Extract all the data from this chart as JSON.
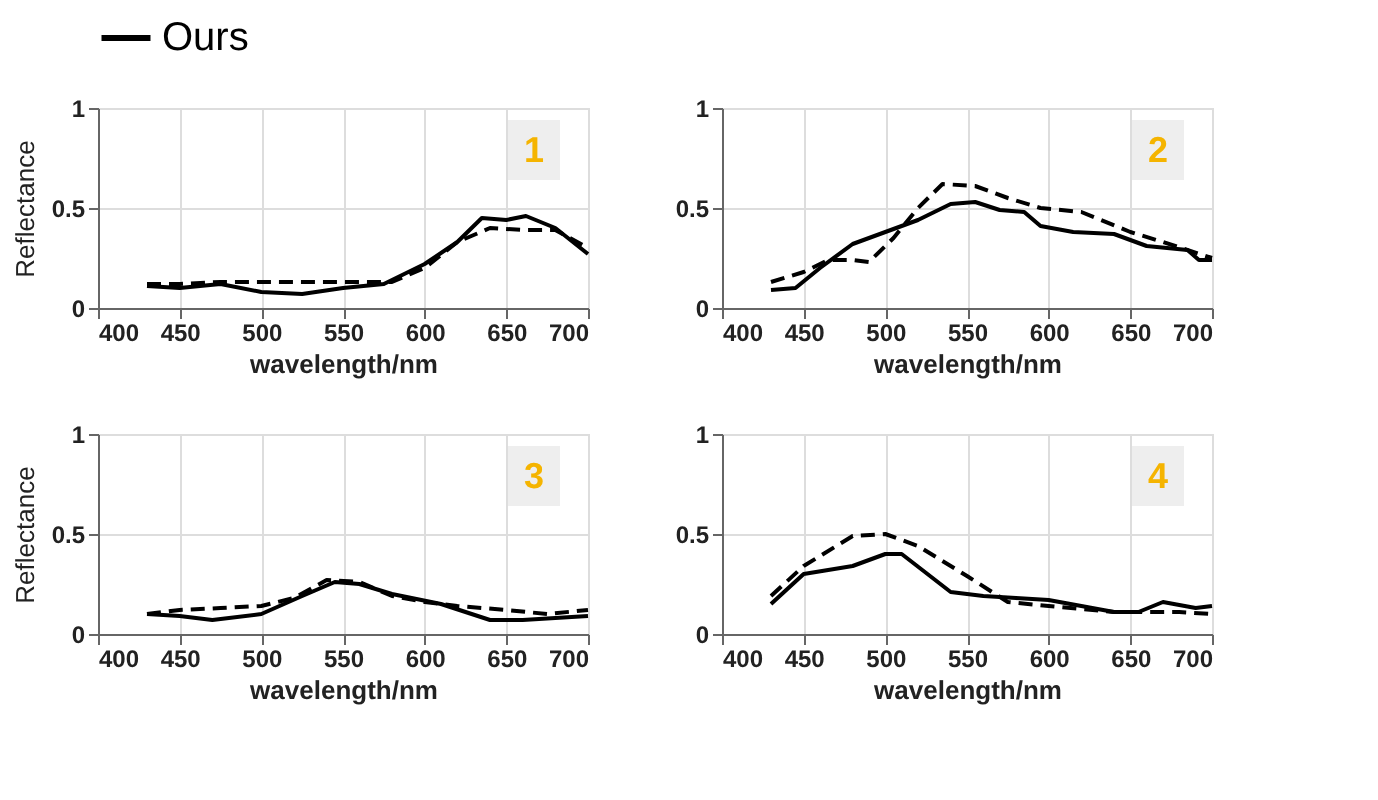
{
  "chart_data": [
    {
      "type": "line",
      "xlabel": "wavelength/nm",
      "ylabel": "Reflectance",
      "xlim": [
        400,
        700
      ],
      "xticks": [
        400,
        450,
        500,
        550,
        600,
        650,
        700
      ],
      "ylim": [
        0,
        1
      ],
      "yticks": [
        0,
        0.5,
        1
      ],
      "grid": true,
      "legend": "top",
      "annotations": [
        "1"
      ],
      "series": [
        {
          "name": "Ours",
          "color": "#000000",
          "line_style": "solid",
          "x": [
            430,
            450,
            475,
            500,
            525,
            550,
            575,
            600,
            620,
            635,
            650,
            662,
            680,
            700
          ],
          "values": [
            0.11,
            0.1,
            0.12,
            0.08,
            0.07,
            0.1,
            0.12,
            0.22,
            0.33,
            0.45,
            0.44,
            0.46,
            0.4,
            0.27
          ]
        },
        {
          "color": "#000000",
          "line_style": "dashed",
          "x": [
            430,
            450,
            475,
            500,
            550,
            580,
            600,
            620,
            640,
            660,
            680,
            700
          ],
          "values": [
            0.12,
            0.12,
            0.13,
            0.13,
            0.13,
            0.13,
            0.2,
            0.33,
            0.4,
            0.39,
            0.39,
            0.3
          ]
        }
      ]
    },
    {
      "type": "line",
      "xlabel": "wavelength/nm",
      "xlim": [
        400,
        700
      ],
      "xticks": [
        400,
        450,
        500,
        550,
        600,
        650,
        700
      ],
      "ylim": [
        0,
        1
      ],
      "yticks": [
        0,
        0.5,
        1
      ],
      "grid": true,
      "annotations": [
        "2"
      ],
      "series": [
        {
          "name": "Ours",
          "color": "#000000",
          "line_style": "solid",
          "x": [
            430,
            445,
            460,
            480,
            500,
            520,
            540,
            555,
            570,
            585,
            595,
            615,
            640,
            660,
            685,
            692,
            700
          ],
          "values": [
            0.09,
            0.1,
            0.2,
            0.32,
            0.38,
            0.44,
            0.52,
            0.53,
            0.49,
            0.48,
            0.41,
            0.38,
            0.37,
            0.31,
            0.29,
            0.24,
            0.24
          ]
        },
        {
          "color": "#000000",
          "line_style": "dashed",
          "x": [
            430,
            450,
            465,
            480,
            490,
            505,
            520,
            535,
            555,
            575,
            595,
            620,
            650,
            670,
            700
          ],
          "values": [
            0.13,
            0.18,
            0.24,
            0.24,
            0.23,
            0.35,
            0.5,
            0.62,
            0.61,
            0.55,
            0.5,
            0.48,
            0.38,
            0.33,
            0.25
          ]
        }
      ]
    },
    {
      "type": "line",
      "xlabel": "wavelength/nm",
      "ylabel": "Reflectance",
      "xlim": [
        400,
        700
      ],
      "xticks": [
        400,
        450,
        500,
        550,
        600,
        650,
        700
      ],
      "ylim": [
        0,
        1
      ],
      "yticks": [
        0,
        0.5,
        1
      ],
      "grid": true,
      "annotations": [
        "3"
      ],
      "series": [
        {
          "name": "Ours",
          "color": "#000000",
          "line_style": "solid",
          "x": [
            430,
            450,
            470,
            500,
            525,
            545,
            560,
            580,
            610,
            640,
            660,
            680,
            700
          ],
          "values": [
            0.1,
            0.09,
            0.07,
            0.1,
            0.19,
            0.26,
            0.25,
            0.2,
            0.15,
            0.07,
            0.07,
            0.08,
            0.09
          ]
        },
        {
          "color": "#000000",
          "line_style": "dashed",
          "x": [
            430,
            450,
            475,
            500,
            520,
            540,
            560,
            580,
            600,
            620,
            650,
            675,
            700
          ],
          "values": [
            0.1,
            0.12,
            0.13,
            0.14,
            0.18,
            0.27,
            0.26,
            0.19,
            0.16,
            0.14,
            0.12,
            0.1,
            0.12
          ]
        }
      ]
    },
    {
      "type": "line",
      "xlabel": "wavelength/nm",
      "xlim": [
        400,
        700
      ],
      "xticks": [
        400,
        450,
        500,
        550,
        600,
        650,
        700
      ],
      "ylim": [
        0,
        1
      ],
      "yticks": [
        0,
        0.5,
        1
      ],
      "grid": true,
      "annotations": [
        "4"
      ],
      "series": [
        {
          "name": "Ours",
          "color": "#000000",
          "line_style": "solid",
          "x": [
            430,
            450,
            480,
            500,
            510,
            540,
            560,
            580,
            600,
            620,
            640,
            655,
            670,
            690,
            700
          ],
          "values": [
            0.15,
            0.3,
            0.34,
            0.4,
            0.4,
            0.21,
            0.19,
            0.18,
            0.17,
            0.14,
            0.11,
            0.11,
            0.16,
            0.13,
            0.14
          ]
        },
        {
          "color": "#000000",
          "line_style": "dashed",
          "x": [
            430,
            450,
            480,
            500,
            520,
            550,
            575,
            600,
            640,
            660,
            680,
            700
          ],
          "values": [
            0.19,
            0.34,
            0.49,
            0.5,
            0.44,
            0.29,
            0.16,
            0.14,
            0.11,
            0.11,
            0.11,
            0.1
          ]
        }
      ]
    }
  ]
}
